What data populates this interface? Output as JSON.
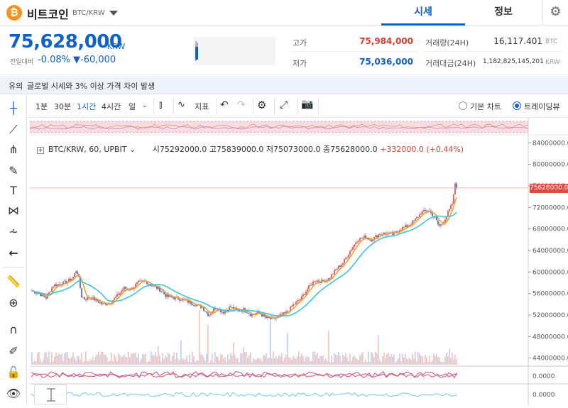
{
  "header": {
    "coin_icon": "bitcoin-icon",
    "coin_name": "비트코인",
    "coin_code": "BTC/KRW",
    "tabs": [
      "시세",
      "정보"
    ]
  },
  "price_panel": {
    "price": "75,628,000",
    "currency": "KRW",
    "change_label": "전일대비",
    "change_pct": "-0.08%",
    "change_amt": "▼-60,000",
    "high_label": "고가",
    "high_value": "75,984,000",
    "low_label": "저가",
    "low_value": "75,036,000",
    "volume_label": "거래량(24H)",
    "volume_value": "16,117.401",
    "volume_unit": "BTC",
    "amount_label": "거래대금(24H)",
    "amount_value": "1,182,825,145,201",
    "amount_unit": "KRW"
  },
  "notice": {
    "tag": "유의",
    "text": "글로벌 시세와 3% 이상 가격 차이 발생"
  },
  "toolbar": {
    "intervals": [
      "1분",
      "30분",
      "1시간",
      "4시간",
      "일"
    ],
    "indicator_label": "지표",
    "basic_chart_label": "기본 차트",
    "tradingview_label": "트레이딩뷰"
  },
  "chart_data": {
    "type": "candlestick",
    "legend": {
      "symbol": "BTC/KRW, 60, UPBIT",
      "open": "시75292000.0",
      "high": "고75839000.0",
      "low": "저75073000.0",
      "close": "종75628000.0",
      "change": "+332000.0 (+0.44%)"
    },
    "y_ticks": [
      "84000000.0",
      "80000000.0",
      "76000000.0",
      "72000000.0",
      "68000000.0",
      "64000000.0",
      "60000000.0",
      "56000000.0",
      "52000000.0",
      "48000000.0",
      "44000000.0"
    ],
    "ylim": [
      42500000,
      85500000
    ],
    "current_price_label": "75628000.0",
    "current_price": 75628000,
    "close_path": [
      [
        0,
        56500000
      ],
      [
        10,
        56000000
      ],
      [
        20,
        55200000
      ],
      [
        30,
        57500000
      ],
      [
        40,
        57800000
      ],
      [
        50,
        58200000
      ],
      [
        58,
        59000000
      ],
      [
        63,
        60500000
      ],
      [
        66,
        59000000
      ],
      [
        70,
        55500000
      ],
      [
        75,
        55000000
      ],
      [
        82,
        55300000
      ],
      [
        90,
        54800000
      ],
      [
        100,
        54000000
      ],
      [
        110,
        54300000
      ],
      [
        120,
        55500000
      ],
      [
        130,
        57000000
      ],
      [
        140,
        56800000
      ],
      [
        150,
        58000000
      ],
      [
        160,
        58300000
      ],
      [
        170,
        57500000
      ],
      [
        180,
        56800000
      ],
      [
        190,
        55500000
      ],
      [
        200,
        55200000
      ],
      [
        210,
        55000000
      ],
      [
        220,
        54500000
      ],
      [
        230,
        54000000
      ],
      [
        240,
        53500000
      ],
      [
        250,
        52000000
      ],
      [
        260,
        53500000
      ],
      [
        270,
        52500000
      ],
      [
        280,
        53500000
      ],
      [
        290,
        52800000
      ],
      [
        300,
        53000000
      ],
      [
        310,
        52000000
      ],
      [
        320,
        52500000
      ],
      [
        330,
        51500000
      ],
      [
        340,
        51200000
      ],
      [
        350,
        51800000
      ],
      [
        360,
        52500000
      ],
      [
        370,
        54000000
      ],
      [
        380,
        55000000
      ],
      [
        390,
        57000000
      ],
      [
        400,
        58500000
      ],
      [
        410,
        58200000
      ],
      [
        420,
        58800000
      ],
      [
        430,
        60500000
      ],
      [
        440,
        61800000
      ],
      [
        450,
        64000000
      ],
      [
        460,
        66000000
      ],
      [
        470,
        66500000
      ],
      [
        480,
        66000000
      ],
      [
        490,
        67000000
      ],
      [
        500,
        67200000
      ],
      [
        510,
        67000000
      ],
      [
        520,
        68000000
      ],
      [
        530,
        68500000
      ],
      [
        540,
        69500000
      ],
      [
        550,
        71000000
      ],
      [
        560,
        71500000
      ],
      [
        570,
        70000000
      ],
      [
        575,
        68500000
      ],
      [
        580,
        69000000
      ],
      [
        590,
        71500000
      ],
      [
        595,
        73000000
      ],
      [
        598,
        76500000
      ],
      [
        600,
        75628000
      ]
    ]
  }
}
